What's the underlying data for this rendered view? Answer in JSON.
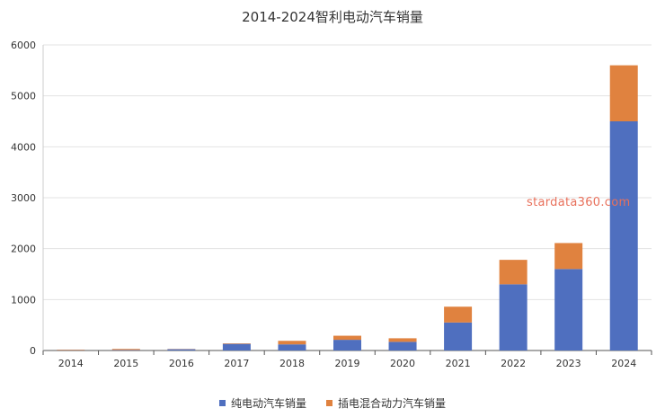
{
  "chart_data": {
    "type": "bar",
    "stacked": true,
    "title": "2014-2024智利电动汽车销量",
    "categories": [
      "2014",
      "2015",
      "2016",
      "2017",
      "2018",
      "2019",
      "2020",
      "2021",
      "2022",
      "2023",
      "2024"
    ],
    "series": [
      {
        "name": "纯电动汽车销量",
        "color": "#4f6fbf",
        "values": [
          5,
          10,
          25,
          130,
          120,
          210,
          170,
          550,
          1300,
          1600,
          4500
        ]
      },
      {
        "name": "插电混合动力汽车销量",
        "color": "#e0823f",
        "values": [
          10,
          20,
          5,
          10,
          70,
          80,
          70,
          310,
          480,
          510,
          1100
        ]
      }
    ],
    "ylim": [
      0,
      6000
    ],
    "yticks": [
      0,
      1000,
      2000,
      3000,
      4000,
      5000,
      6000
    ],
    "grid": true,
    "legend_position": "bottom"
  },
  "watermark": "stardata360.com"
}
